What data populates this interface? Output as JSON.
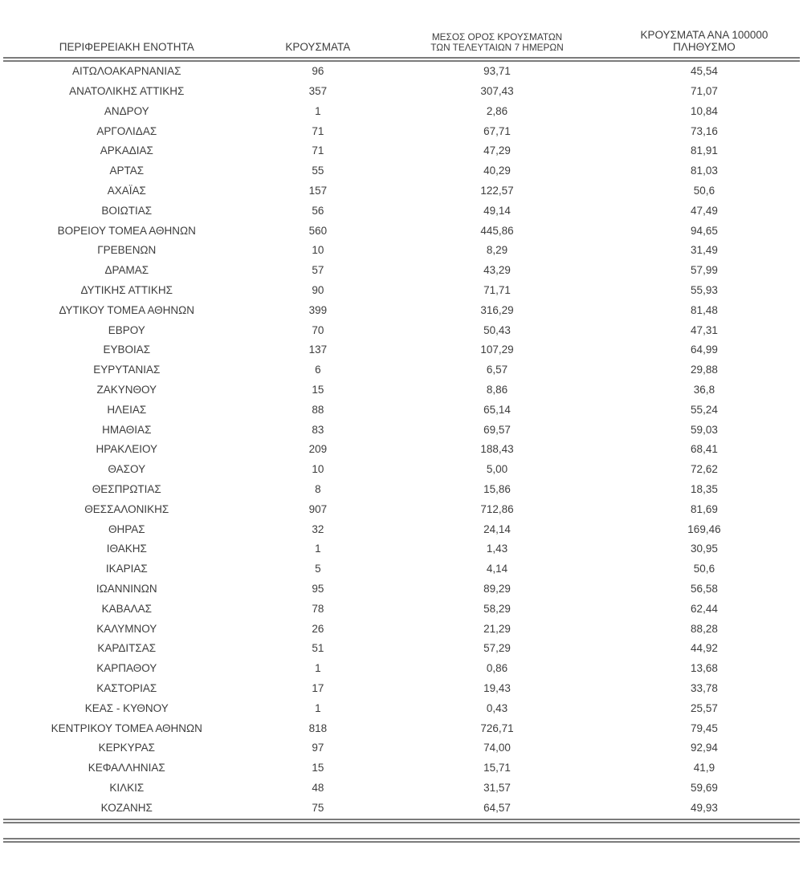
{
  "page": {
    "background": "#ffffff",
    "text_color": "#3d3d3d",
    "rule_color": "#7b7b7b"
  },
  "table": {
    "headers": [
      {
        "lines": [
          "ΠΕΡΙΦΕΡΕΙΑΚΗ ΕΝΟΤΗΤΑ"
        ]
      },
      {
        "lines": [
          "ΚΡΟΥΣΜΑΤΑ"
        ]
      },
      {
        "lines": [
          "ΜΕΣΟΣ ΟΡΟΣ ΚΡΟΥΣΜΑΤΩΝ",
          "ΤΩΝ ΤΕΛΕΥΤΑΙΩΝ 7 ΗΜΕΡΩΝ"
        ]
      },
      {
        "lines": [
          "ΚΡΟΥΣΜΑΤΑ ΑΝΑ 100000",
          "ΠΛΗΘΥΣΜΟ"
        ]
      }
    ],
    "rows": [
      [
        "ΑΙΤΩΛΟΑΚΑΡΝΑΝΙΑΣ",
        "96",
        "93,71",
        "45,54"
      ],
      [
        "ΑΝΑΤΟΛΙΚΗΣ ΑΤΤΙΚΗΣ",
        "357",
        "307,43",
        "71,07"
      ],
      [
        "ΑΝΔΡΟΥ",
        "1",
        "2,86",
        "10,84"
      ],
      [
        "ΑΡΓΟΛΙΔΑΣ",
        "71",
        "67,71",
        "73,16"
      ],
      [
        "ΑΡΚΑΔΙΑΣ",
        "71",
        "47,29",
        "81,91"
      ],
      [
        "ΑΡΤΑΣ",
        "55",
        "40,29",
        "81,03"
      ],
      [
        "ΑΧΑΪΑΣ",
        "157",
        "122,57",
        "50,6"
      ],
      [
        "ΒΟΙΩΤΙΑΣ",
        "56",
        "49,14",
        "47,49"
      ],
      [
        "ΒΟΡΕΙΟΥ ΤΟΜΕΑ ΑΘΗΝΩΝ",
        "560",
        "445,86",
        "94,65"
      ],
      [
        "ΓΡΕΒΕΝΩΝ",
        "10",
        "8,29",
        "31,49"
      ],
      [
        "ΔΡΑΜΑΣ",
        "57",
        "43,29",
        "57,99"
      ],
      [
        "ΔΥΤΙΚΗΣ ΑΤΤΙΚΗΣ",
        "90",
        "71,71",
        "55,93"
      ],
      [
        "ΔΥΤΙΚΟΥ ΤΟΜΕΑ ΑΘΗΝΩΝ",
        "399",
        "316,29",
        "81,48"
      ],
      [
        "ΕΒΡΟΥ",
        "70",
        "50,43",
        "47,31"
      ],
      [
        "ΕΥΒΟΙΑΣ",
        "137",
        "107,29",
        "64,99"
      ],
      [
        "ΕΥΡΥΤΑΝΙΑΣ",
        "6",
        "6,57",
        "29,88"
      ],
      [
        "ΖΑΚΥΝΘΟΥ",
        "15",
        "8,86",
        "36,8"
      ],
      [
        "ΗΛΕΙΑΣ",
        "88",
        "65,14",
        "55,24"
      ],
      [
        "ΗΜΑΘΙΑΣ",
        "83",
        "69,57",
        "59,03"
      ],
      [
        "ΗΡΑΚΛΕΙΟΥ",
        "209",
        "188,43",
        "68,41"
      ],
      [
        "ΘΑΣΟΥ",
        "10",
        "5,00",
        "72,62"
      ],
      [
        "ΘΕΣΠΡΩΤΙΑΣ",
        "8",
        "15,86",
        "18,35"
      ],
      [
        "ΘΕΣΣΑΛΟΝΙΚΗΣ",
        "907",
        "712,86",
        "81,69"
      ],
      [
        "ΘΗΡΑΣ",
        "32",
        "24,14",
        "169,46"
      ],
      [
        "ΙΘΑΚΗΣ",
        "1",
        "1,43",
        "30,95"
      ],
      [
        "ΙΚΑΡΙΑΣ",
        "5",
        "4,14",
        "50,6"
      ],
      [
        "ΙΩΑΝΝΙΝΩΝ",
        "95",
        "89,29",
        "56,58"
      ],
      [
        "ΚΑΒΑΛΑΣ",
        "78",
        "58,29",
        "62,44"
      ],
      [
        "ΚΑΛΥΜΝΟΥ",
        "26",
        "21,29",
        "88,28"
      ],
      [
        "ΚΑΡΔΙΤΣΑΣ",
        "51",
        "57,29",
        "44,92"
      ],
      [
        "ΚΑΡΠΑΘΟΥ",
        "1",
        "0,86",
        "13,68"
      ],
      [
        "ΚΑΣΤΟΡΙΑΣ",
        "17",
        "19,43",
        "33,78"
      ],
      [
        "ΚΕΑΣ - ΚΥΘΝΟΥ",
        "1",
        "0,43",
        "25,57"
      ],
      [
        "ΚΕΝΤΡΙΚΟΥ ΤΟΜΕΑ ΑΘΗΝΩΝ",
        "818",
        "726,71",
        "79,45"
      ],
      [
        "ΚΕΡΚΥΡΑΣ",
        "97",
        "74,00",
        "92,94"
      ],
      [
        "ΚΕΦΑΛΛΗΝΙΑΣ",
        "15",
        "15,71",
        "41,9"
      ],
      [
        "ΚΙΛΚΙΣ",
        "48",
        "31,57",
        "59,69"
      ],
      [
        "ΚΟΖΑΝΗΣ",
        "75",
        "64,57",
        "49,93"
      ]
    ]
  },
  "chart_data": {
    "type": "table",
    "title": "",
    "columns": [
      "ΠΕΡΙΦΕΡΕΙΑΚΗ ΕΝΟΤΗΤΑ",
      "ΚΡΟΥΣΜΑΤΑ",
      "ΜΕΣΟΣ ΟΡΟΣ ΚΡΟΥΣΜΑΤΩΝ ΤΩΝ ΤΕΛΕΥΤΑΙΩΝ 7 ΗΜΕΡΩΝ",
      "ΚΡΟΥΣΜΑΤΑ ΑΝΑ 100000 ΠΛΗΘΥΣΜΟ"
    ],
    "note": "values duplicated in table.rows"
  }
}
